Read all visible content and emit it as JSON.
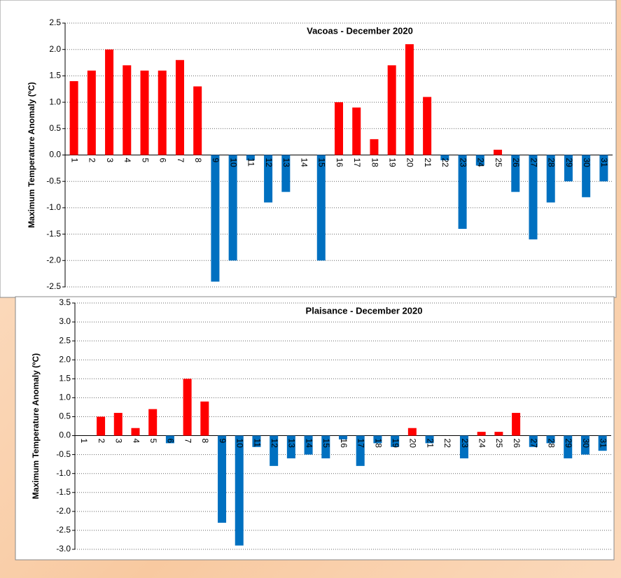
{
  "chart_data": [
    {
      "type": "bar",
      "title": "Vacoas - December 2020",
      "y_label": "Maximum Temperature Anomaly (ºC)",
      "categories": [
        "1",
        "2",
        "3",
        "4",
        "5",
        "6",
        "7",
        "8",
        "9",
        "10",
        "11",
        "12",
        "13",
        "14",
        "15",
        "16",
        "17",
        "18",
        "19",
        "20",
        "21",
        "22",
        "23",
        "24",
        "25",
        "26",
        "27",
        "28",
        "29",
        "30",
        "31"
      ],
      "values": [
        1.4,
        1.6,
        2.0,
        1.7,
        1.6,
        1.6,
        1.8,
        1.3,
        -2.4,
        -2.0,
        -0.1,
        -0.9,
        -0.7,
        0,
        -2.0,
        1.0,
        0.9,
        0.3,
        1.7,
        2.1,
        1.1,
        -0.1,
        -1.4,
        -0.2,
        0.1,
        -0.7,
        -1.6,
        -0.9,
        -0.5,
        -0.8,
        -0.5
      ],
      "positive_color": "#ff0000",
      "negative_color": "#0070c0",
      "ylim": [
        -2.5,
        2.5
      ],
      "yticks": [
        -2.5,
        {
          "value": -2,
          "label": "-2.0"
        },
        -1.5,
        {
          "value": -1,
          "label": "-1.0"
        },
        -0.5,
        {
          "value": 0,
          "label": "0.0"
        },
        0.5,
        {
          "value": 1,
          "label": "1.0"
        },
        1.5,
        {
          "value": 2,
          "label": "2.0"
        },
        2.5
      ],
      "grid": true
    },
    {
      "type": "bar",
      "title": "Plaisance - December 2020",
      "y_label": "Maximum Temperature Anomaly (ºC)",
      "categories": [
        "1",
        "2",
        "3",
        "4",
        "5",
        "6",
        "7",
        "8",
        "9",
        "10",
        "11",
        "12",
        "13",
        "14",
        "15",
        "16",
        "17",
        "18",
        "19",
        "20",
        "21",
        "22",
        "23",
        "24",
        "25",
        "26",
        "27",
        "28",
        "29",
        "30",
        "31"
      ],
      "values": [
        0,
        0.5,
        0.6,
        0.2,
        0.7,
        -0.2,
        1.5,
        0.9,
        -2.3,
        -2.9,
        -0.3,
        -0.8,
        -0.6,
        -0.5,
        -0.6,
        -0.1,
        -0.8,
        -0.2,
        -0.3,
        0.2,
        -0.2,
        0,
        -0.6,
        0.1,
        0.1,
        0.6,
        -0.3,
        -0.2,
        -0.6,
        -0.5,
        -0.4
      ],
      "positive_color": "#ff0000",
      "negative_color": "#0070c0",
      "ylim": [
        -3,
        3.5
      ],
      "yticks": [
        {
          "value": -3,
          "label": "-3.0"
        },
        -2.5,
        {
          "value": -2,
          "label": "-2.0"
        },
        -1.5,
        {
          "value": -1,
          "label": "-1.0"
        },
        -0.5,
        {
          "value": 0,
          "label": "0.0"
        },
        0.5,
        {
          "value": 1,
          "label": "1.0"
        },
        1.5,
        {
          "value": 2,
          "label": "2.0"
        },
        2.5,
        {
          "value": 3,
          "label": "3.0"
        },
        3.5
      ],
      "grid": true
    }
  ]
}
